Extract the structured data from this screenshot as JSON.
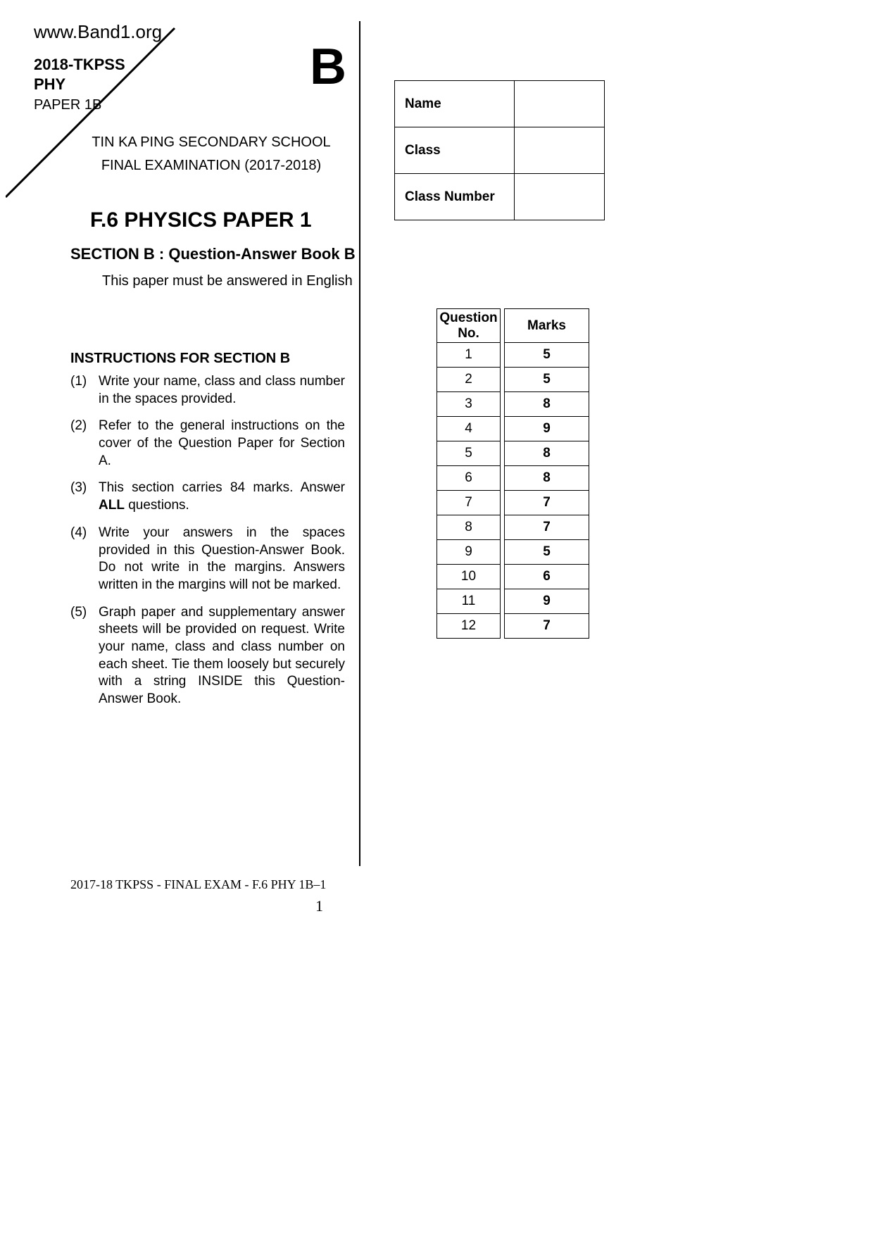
{
  "website_url": "www.Band1.org",
  "exam_code_line1": "2018-TKPSS",
  "exam_code_line2": "PHY",
  "paper_label": "PAPER 1B",
  "corner_letter": "B",
  "school_name": "TIN KA PING SECONDARY SCHOOL",
  "exam_name": "FINAL EXAMINATION (2017-2018)",
  "main_title": "F.6 PHYSICS  PAPER 1",
  "section_title": "SECTION B : Question-Answer Book B",
  "english_note": "This paper must be answered in English",
  "name_table": {
    "rows": [
      {
        "label": "Name"
      },
      {
        "label": "Class"
      },
      {
        "label": "Class Number"
      }
    ]
  },
  "instructions_heading": "INSTRUCTIONS FOR SECTION B",
  "instructions": [
    {
      "num": "(1)",
      "text": "Write your name, class and class number in the spaces provided."
    },
    {
      "num": "(2)",
      "text": "Refer to the general instructions on the cover of the Question Paper for Section A."
    },
    {
      "num": "(3)",
      "text_pre": "This section carries 84 marks. Answer ",
      "bold": "ALL",
      "text_post": " questions."
    },
    {
      "num": "(4)",
      "text": "Write your answers in the spaces provided in this Question-Answer Book.  Do not write in the margins. Answers written in the margins will not be marked."
    },
    {
      "num": "(5)",
      "text": "Graph paper and supplementary answer sheets will be provided on request. Write your name, class and class number on each sheet.  Tie them loosely but securely with a string INSIDE this Question-Answer Book."
    }
  ],
  "marks_table": {
    "header_q_line1": "Question",
    "header_q_line2": "No.",
    "header_m": "Marks",
    "rows": [
      {
        "q": "1",
        "m": "5"
      },
      {
        "q": "2",
        "m": "5"
      },
      {
        "q": "3",
        "m": "8"
      },
      {
        "q": "4",
        "m": "9"
      },
      {
        "q": "5",
        "m": "8"
      },
      {
        "q": "6",
        "m": "8"
      },
      {
        "q": "7",
        "m": "7"
      },
      {
        "q": "8",
        "m": "7"
      },
      {
        "q": "9",
        "m": "5"
      },
      {
        "q": "10",
        "m": "6"
      },
      {
        "q": "11",
        "m": "9"
      },
      {
        "q": "12",
        "m": "7"
      }
    ]
  },
  "footer": "2017-18 TKPSS - FINAL EXAM - F.6 PHY 1B–1",
  "page_number": "1",
  "colors": {
    "text": "#000000",
    "background": "#ffffff",
    "border": "#000000"
  }
}
